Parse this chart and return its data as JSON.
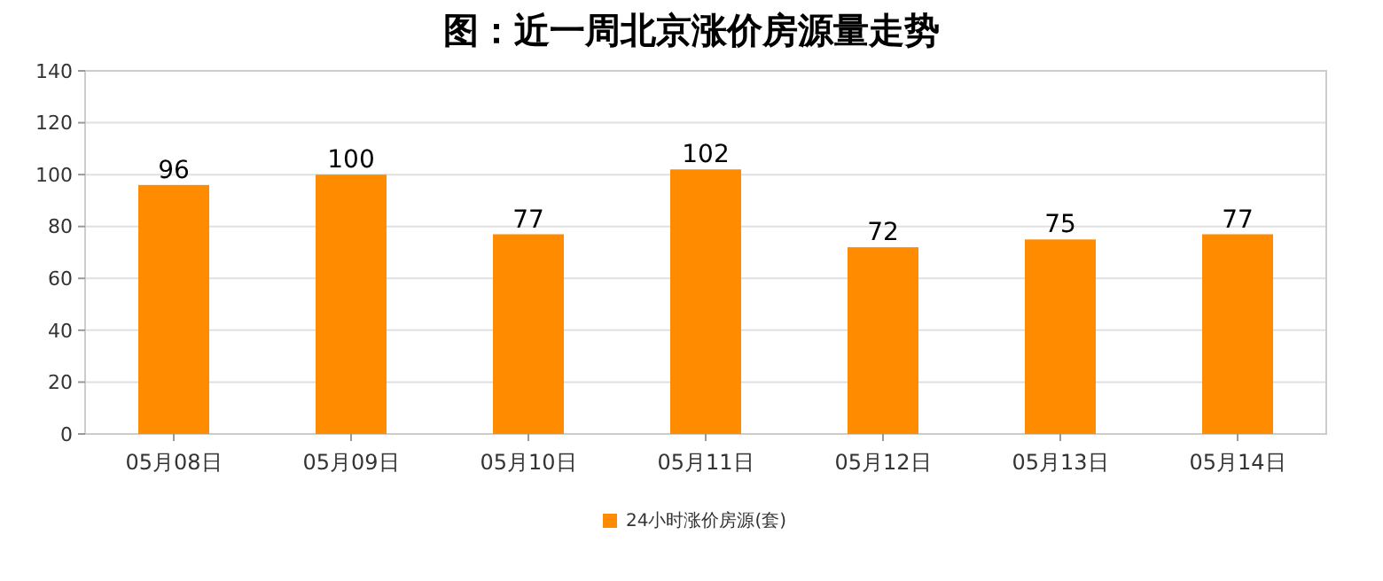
{
  "chart_data": {
    "type": "bar",
    "title": "图：近一周北京涨价房源量走势",
    "categories": [
      "05月08日",
      "05月09日",
      "05月10日",
      "05月11日",
      "05月12日",
      "05月13日",
      "05月14日"
    ],
    "series": [
      {
        "name": "24小时涨价房源(套)",
        "color": "#ff8c00",
        "values": [
          96,
          100,
          77,
          102,
          72,
          75,
          77
        ]
      }
    ],
    "ylim": [
      0,
      140
    ],
    "yticks": [
      0,
      20,
      40,
      60,
      80,
      100,
      120,
      140
    ],
    "grid": "y",
    "legend": "bottom",
    "data_labels": true
  }
}
